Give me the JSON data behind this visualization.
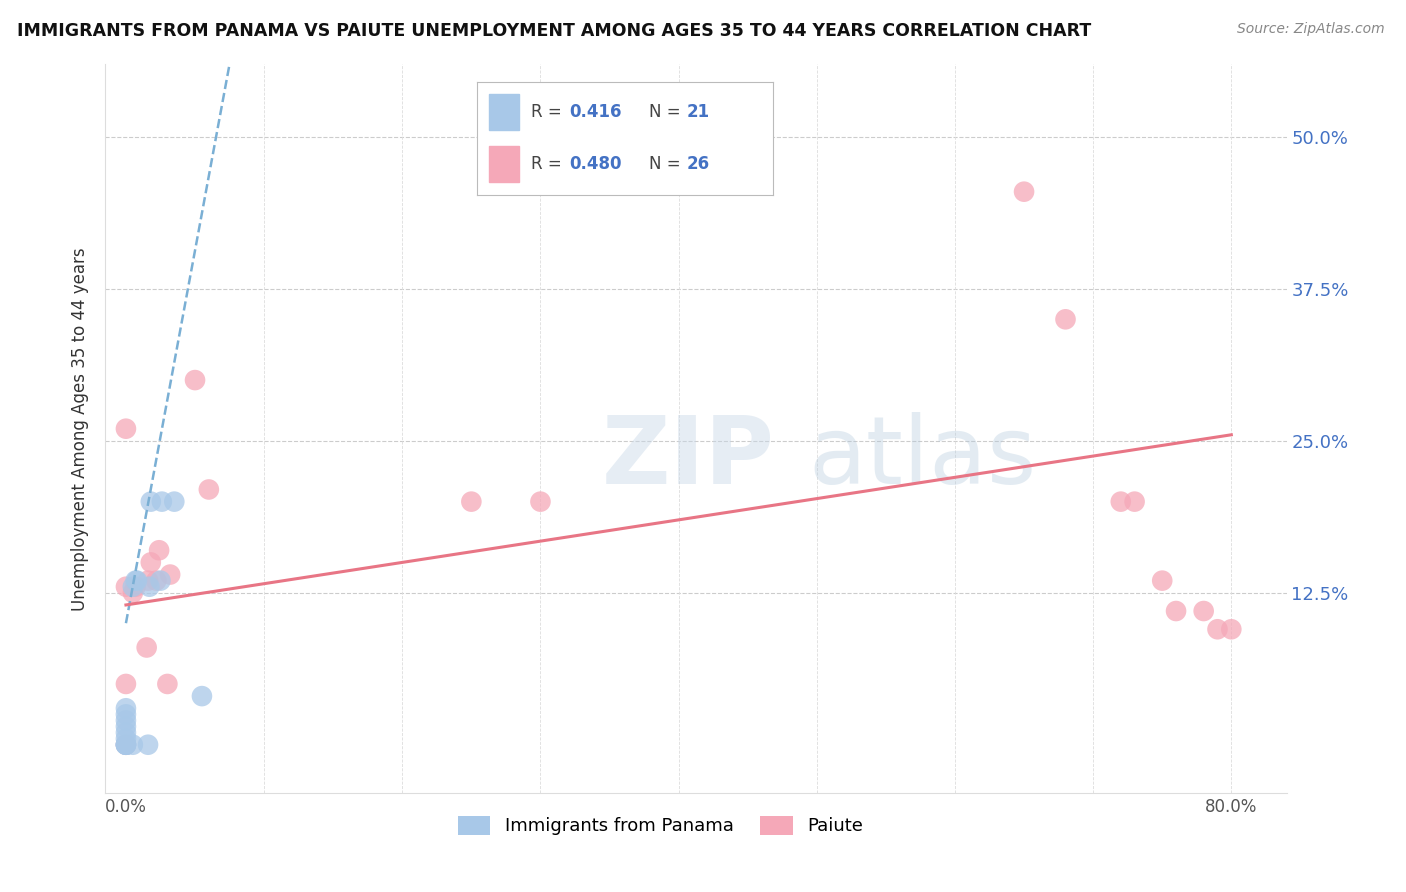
{
  "title": "IMMIGRANTS FROM PANAMA VS PAIUTE UNEMPLOYMENT AMONG AGES 35 TO 44 YEARS CORRELATION CHART",
  "source": "Source: ZipAtlas.com",
  "ylabel": "Unemployment Among Ages 35 to 44 years",
  "ytick_labels": [
    "12.5%",
    "25.0%",
    "37.5%",
    "50.0%"
  ],
  "ytick_values": [
    0.125,
    0.25,
    0.375,
    0.5
  ],
  "xlim": [
    -0.015,
    0.84
  ],
  "ylim": [
    -0.04,
    0.56
  ],
  "legend_blue_r": "0.416",
  "legend_blue_n": "21",
  "legend_pink_r": "0.480",
  "legend_pink_n": "26",
  "blue_color": "#a8c8e8",
  "pink_color": "#f5a8b8",
  "blue_line_color": "#7aafd4",
  "pink_line_color": "#e87585",
  "panama_x": [
    0.0,
    0.0,
    0.0,
    0.0,
    0.0,
    0.0,
    0.0,
    0.0,
    0.0,
    0.0,
    0.005,
    0.005,
    0.007,
    0.008,
    0.016,
    0.017,
    0.018,
    0.025,
    0.026,
    0.035,
    0.055
  ],
  "panama_y": [
    0.0,
    0.0,
    0.0,
    0.0,
    0.005,
    0.01,
    0.015,
    0.02,
    0.025,
    0.03,
    0.0,
    0.13,
    0.135,
    0.135,
    0.0,
    0.13,
    0.2,
    0.135,
    0.2,
    0.2,
    0.04
  ],
  "paiute_x": [
    0.0,
    0.0,
    0.0,
    0.0,
    0.005,
    0.007,
    0.015,
    0.016,
    0.018,
    0.022,
    0.024,
    0.03,
    0.032,
    0.05,
    0.06,
    0.25,
    0.3,
    0.65,
    0.68,
    0.72,
    0.73,
    0.75,
    0.76,
    0.78,
    0.79,
    0.8
  ],
  "paiute_y": [
    0.0,
    0.05,
    0.13,
    0.26,
    0.125,
    0.13,
    0.08,
    0.135,
    0.15,
    0.135,
    0.16,
    0.05,
    0.14,
    0.3,
    0.21,
    0.2,
    0.2,
    0.455,
    0.35,
    0.2,
    0.2,
    0.135,
    0.11,
    0.11,
    0.095,
    0.095
  ],
  "blue_trend_x0": 0.0,
  "blue_trend_x1": 0.075,
  "blue_trend_y0": 0.1,
  "blue_trend_y1": 0.56,
  "pink_trend_x0": 0.0,
  "pink_trend_x1": 0.8,
  "pink_trend_y0": 0.115,
  "pink_trend_y1": 0.255
}
